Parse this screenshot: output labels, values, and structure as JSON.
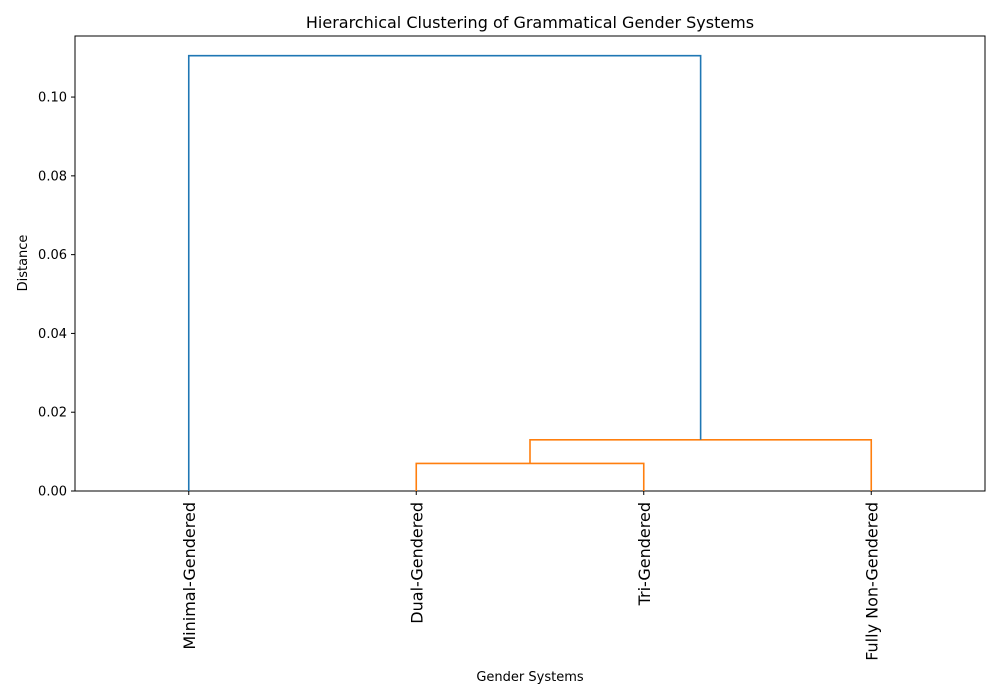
{
  "chart_data": {
    "type": "dendrogram",
    "title": "Hierarchical Clustering of Grammatical Gender Systems",
    "xlabel": "Gender Systems",
    "ylabel": "Distance",
    "ylim": [
      0,
      0.1155
    ],
    "yticks": [
      "0.00",
      "0.02",
      "0.04",
      "0.06",
      "0.08",
      "0.10"
    ],
    "ytick_values": [
      0,
      0.02,
      0.04,
      0.06,
      0.08,
      0.1
    ],
    "leaves": [
      "Minimal-Gendered",
      "Dual-Gendered",
      "Tri-Gendered",
      "Fully Non-Gendered"
    ],
    "merges": [
      {
        "left": "Dual-Gendered",
        "right": "Tri-Gendered",
        "distance": 0.007,
        "color": "#ff7f0e"
      },
      {
        "left": "cluster(Dual-Gendered, Tri-Gendered)",
        "right": "Fully Non-Gendered",
        "distance": 0.013,
        "color": "#ff7f0e"
      },
      {
        "left": "Minimal-Gendered",
        "right": "cluster(Dual-Gendered, Tri-Gendered, Fully Non-Gendered)",
        "distance": 0.1105,
        "color": "#1f77b4"
      }
    ],
    "grid": false,
    "colors": {
      "above_threshold": "#1f77b4",
      "cluster": "#ff7f0e"
    }
  }
}
